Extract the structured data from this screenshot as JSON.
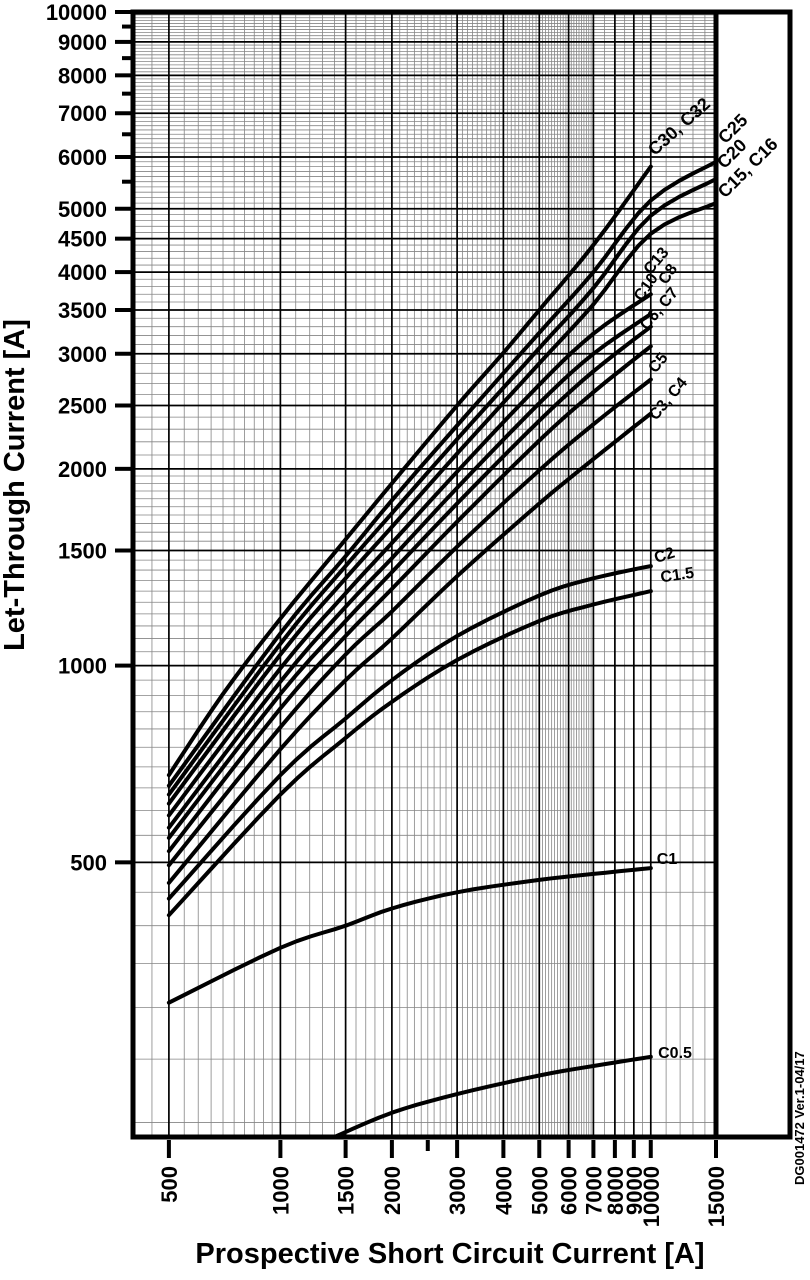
{
  "page": {
    "background": "#ffffff"
  },
  "chart_data": {
    "type": "line",
    "title": "",
    "xlabel": "Prospective Short Circuit Current [A]",
    "ylabel": "Let-Through Current [A]",
    "x_scale": "log",
    "y_scale": "log",
    "xlim": [
      400,
      15000
    ],
    "ylim": [
      190,
      10000
    ],
    "grid": true,
    "legend_position": "curve-end-labels",
    "colors": {
      "curve": "#000000",
      "grid_minor": "#858585",
      "grid_major": "#000000",
      "axis": "#000000"
    },
    "x_ticks": [
      {
        "v": 500,
        "label": "500"
      },
      {
        "v": 1000,
        "label": "1000"
      },
      {
        "v": 1500,
        "label": "1500"
      },
      {
        "v": 2000,
        "label": "2000"
      },
      {
        "v": 2500,
        "label": ""
      },
      {
        "v": 3000,
        "label": "3000"
      },
      {
        "v": 4000,
        "label": "4000"
      },
      {
        "v": 5000,
        "label": "5000"
      },
      {
        "v": 6000,
        "label": "6000"
      },
      {
        "v": 7000,
        "label": "7000"
      },
      {
        "v": 8000,
        "label": "8000"
      },
      {
        "v": 9000,
        "label": "9000"
      },
      {
        "v": 10000,
        "label": "10000"
      },
      {
        "v": 15000,
        "label": "15000"
      }
    ],
    "y_ticks": [
      {
        "v": 10000,
        "label": "10000"
      },
      {
        "v": 9500,
        "label": ""
      },
      {
        "v": 9000,
        "label": "9000"
      },
      {
        "v": 8500,
        "label": ""
      },
      {
        "v": 8000,
        "label": "8000"
      },
      {
        "v": 7500,
        "label": ""
      },
      {
        "v": 7000,
        "label": "7000"
      },
      {
        "v": 6500,
        "label": ""
      },
      {
        "v": 6000,
        "label": "6000"
      },
      {
        "v": 5500,
        "label": ""
      },
      {
        "v": 5000,
        "label": "5000"
      },
      {
        "v": 4500,
        "label": "4500"
      },
      {
        "v": 4000,
        "label": "4000"
      },
      {
        "v": 3500,
        "label": "3500"
      },
      {
        "v": 3000,
        "label": "3000"
      },
      {
        "v": 2500,
        "label": "2500"
      },
      {
        "v": 2000,
        "label": "2000"
      },
      {
        "v": 1500,
        "label": "1500"
      },
      {
        "v": 1000,
        "label": "1000"
      },
      {
        "v": 500,
        "label": "500"
      }
    ],
    "x_minor_ranges": [
      [
        400,
        1000,
        50
      ],
      [
        1000,
        7000,
        100
      ],
      [
        7000,
        10000,
        500
      ],
      [
        10000,
        15000,
        1000
      ]
    ],
    "y_minor_ranges": [
      [
        200,
        2000,
        50
      ],
      [
        2000,
        10000,
        100
      ]
    ],
    "watermark": "DG001472  Ver.1-04/17",
    "series": [
      {
        "name": "C30, C32",
        "points": [
          [
            500,
            680
          ],
          [
            700,
            905
          ],
          [
            1000,
            1180
          ],
          [
            1500,
            1560
          ],
          [
            2000,
            1900
          ],
          [
            3000,
            2500
          ],
          [
            4000,
            3010
          ],
          [
            5000,
            3500
          ],
          [
            7000,
            4400
          ],
          [
            10000,
            5800
          ]
        ],
        "label": {
          "x": 683,
          "y": 131,
          "rot": -42,
          "size": 18
        }
      },
      {
        "name": "C25",
        "points": [
          [
            500,
            655
          ],
          [
            1000,
            1120
          ],
          [
            1500,
            1470
          ],
          [
            2000,
            1790
          ],
          [
            3000,
            2330
          ],
          [
            5000,
            3230
          ],
          [
            7000,
            4000
          ],
          [
            10000,
            5150
          ],
          [
            15000,
            5900
          ]
        ],
        "label": {
          "x": 737,
          "y": 133,
          "rot": -45,
          "size": 18
        }
      },
      {
        "name": "C20",
        "points": [
          [
            500,
            635
          ],
          [
            1000,
            1080
          ],
          [
            1500,
            1420
          ],
          [
            2000,
            1710
          ],
          [
            3000,
            2220
          ],
          [
            5000,
            3060
          ],
          [
            7000,
            3780
          ],
          [
            10000,
            4880
          ],
          [
            15000,
            5550
          ]
        ],
        "label": {
          "x": 736,
          "y": 158,
          "rot": -45,
          "size": 18
        }
      },
      {
        "name": "C15, C16",
        "points": [
          [
            500,
            615
          ],
          [
            1000,
            1040
          ],
          [
            1500,
            1360
          ],
          [
            2000,
            1630
          ],
          [
            3000,
            2110
          ],
          [
            5000,
            2900
          ],
          [
            7000,
            3570
          ],
          [
            10000,
            4580
          ],
          [
            15000,
            5100
          ]
        ],
        "label": {
          "x": 752,
          "y": 172,
          "rot": -45,
          "size": 18
        }
      },
      {
        "name": "C13",
        "points": [
          [
            500,
            590
          ],
          [
            1000,
            990
          ],
          [
            1500,
            1290
          ],
          [
            2000,
            1540
          ],
          [
            3000,
            1980
          ],
          [
            5000,
            2690
          ],
          [
            7000,
            3220
          ],
          [
            10000,
            3700
          ]
        ],
        "label": {
          "x": 660,
          "y": 264,
          "rot": -50,
          "size": 16
        }
      },
      {
        "name": "C10",
        "points": [
          [
            500,
            565
          ],
          [
            1000,
            945
          ],
          [
            1500,
            1230
          ],
          [
            2000,
            1460
          ],
          [
            3000,
            1870
          ],
          [
            5000,
            2520
          ],
          [
            7000,
            3000
          ],
          [
            10000,
            3450
          ]
        ],
        "label": {
          "x": 650,
          "y": 290,
          "rot": -55,
          "size": 16
        }
      },
      {
        "name": "C8",
        "points": [
          [
            500,
            545
          ],
          [
            1000,
            905
          ],
          [
            1500,
            1170
          ],
          [
            2000,
            1390
          ],
          [
            3000,
            1770
          ],
          [
            5000,
            2370
          ],
          [
            7000,
            2820
          ],
          [
            10000,
            3300
          ]
        ],
        "label": {
          "x": 672,
          "y": 277,
          "rot": -55,
          "size": 16
        }
      },
      {
        "name": "C6, C7",
        "points": [
          [
            500,
            520
          ],
          [
            1000,
            860
          ],
          [
            1500,
            1110
          ],
          [
            2000,
            1310
          ],
          [
            3000,
            1660
          ],
          [
            5000,
            2210
          ],
          [
            7000,
            2620
          ],
          [
            10000,
            3080
          ]
        ],
        "label": {
          "x": 663,
          "y": 312,
          "rot": -50,
          "size": 16
        }
      },
      {
        "name": "C5",
        "points": [
          [
            500,
            495
          ],
          [
            1000,
            805
          ],
          [
            1500,
            1040
          ],
          [
            2000,
            1210
          ],
          [
            3000,
            1520
          ],
          [
            5000,
            1990
          ],
          [
            7000,
            2340
          ],
          [
            10000,
            2740
          ]
        ],
        "label": {
          "x": 662,
          "y": 366,
          "rot": -50,
          "size": 16
        }
      },
      {
        "name": "C3, C4",
        "points": [
          [
            500,
            465
          ],
          [
            1000,
            745
          ],
          [
            1500,
            950
          ],
          [
            2000,
            1100
          ],
          [
            3000,
            1370
          ],
          [
            5000,
            1770
          ],
          [
            7000,
            2070
          ],
          [
            10000,
            2430
          ]
        ],
        "label": {
          "x": 672,
          "y": 402,
          "rot": -50,
          "size": 16
        }
      },
      {
        "name": "C2",
        "points": [
          [
            500,
            440
          ],
          [
            1000,
            680
          ],
          [
            1500,
            830
          ],
          [
            2000,
            950
          ],
          [
            3000,
            1110
          ],
          [
            5000,
            1280
          ],
          [
            7000,
            1360
          ],
          [
            10000,
            1420
          ]
        ],
        "label": {
          "x": 666,
          "y": 560,
          "rot": -18,
          "size": 16
        }
      },
      {
        "name": "C1.5",
        "points": [
          [
            500,
            415
          ],
          [
            1000,
            635
          ],
          [
            1500,
            775
          ],
          [
            2000,
            880
          ],
          [
            3000,
            1020
          ],
          [
            5000,
            1170
          ],
          [
            7000,
            1240
          ],
          [
            10000,
            1300
          ]
        ],
        "label": {
          "x": 678,
          "y": 580,
          "rot": -8,
          "size": 16
        }
      },
      {
        "name": "C1",
        "points": [
          [
            500,
            305
          ],
          [
            1000,
            370
          ],
          [
            1500,
            400
          ],
          [
            2000,
            425
          ],
          [
            3000,
            450
          ],
          [
            5000,
            470
          ],
          [
            7000,
            480
          ],
          [
            10000,
            490
          ]
        ],
        "label": {
          "x": 667,
          "y": 864,
          "rot": 0,
          "size": 16
        }
      },
      {
        "name": "C0.5",
        "points": [
          [
            1400,
            190
          ],
          [
            2000,
            207
          ],
          [
            3000,
            221
          ],
          [
            5000,
            236
          ],
          [
            7000,
            244
          ],
          [
            10000,
            252
          ]
        ],
        "label": {
          "x": 675,
          "y": 1058,
          "rot": 0,
          "size": 16
        }
      }
    ]
  }
}
